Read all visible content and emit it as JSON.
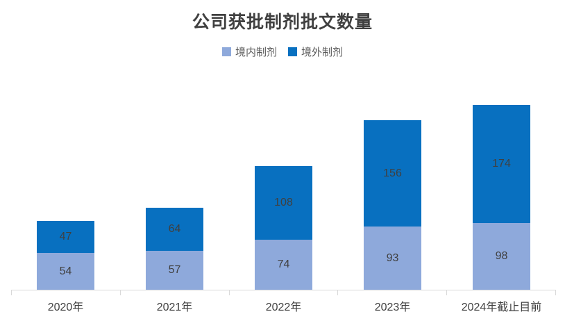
{
  "chart_data": {
    "type": "bar",
    "stacked": true,
    "title": "公司获批制剂批文数量",
    "categories": [
      "2020年",
      "2021年",
      "2022年",
      "2023年",
      "2024年截止目前"
    ],
    "series": [
      {
        "name": "境内制剂",
        "color": "#8EA9DB",
        "values": [
          54,
          57,
          74,
          93,
          98
        ]
      },
      {
        "name": "境外制剂",
        "color": "#0870C0",
        "values": [
          47,
          64,
          108,
          156,
          174
        ]
      }
    ],
    "totals": [
      101,
      121,
      182,
      249,
      272
    ],
    "data_labels": true,
    "legend_position": "top",
    "grid": false,
    "xlabel": "",
    "ylabel": "",
    "styles": {
      "title_color": "#404040",
      "legend_text_color": "#595959",
      "data_label_color": "#404040",
      "axis_line_color": "#D9D9D9",
      "axis_label_color": "#404040",
      "background": "#FFFFFF"
    }
  }
}
